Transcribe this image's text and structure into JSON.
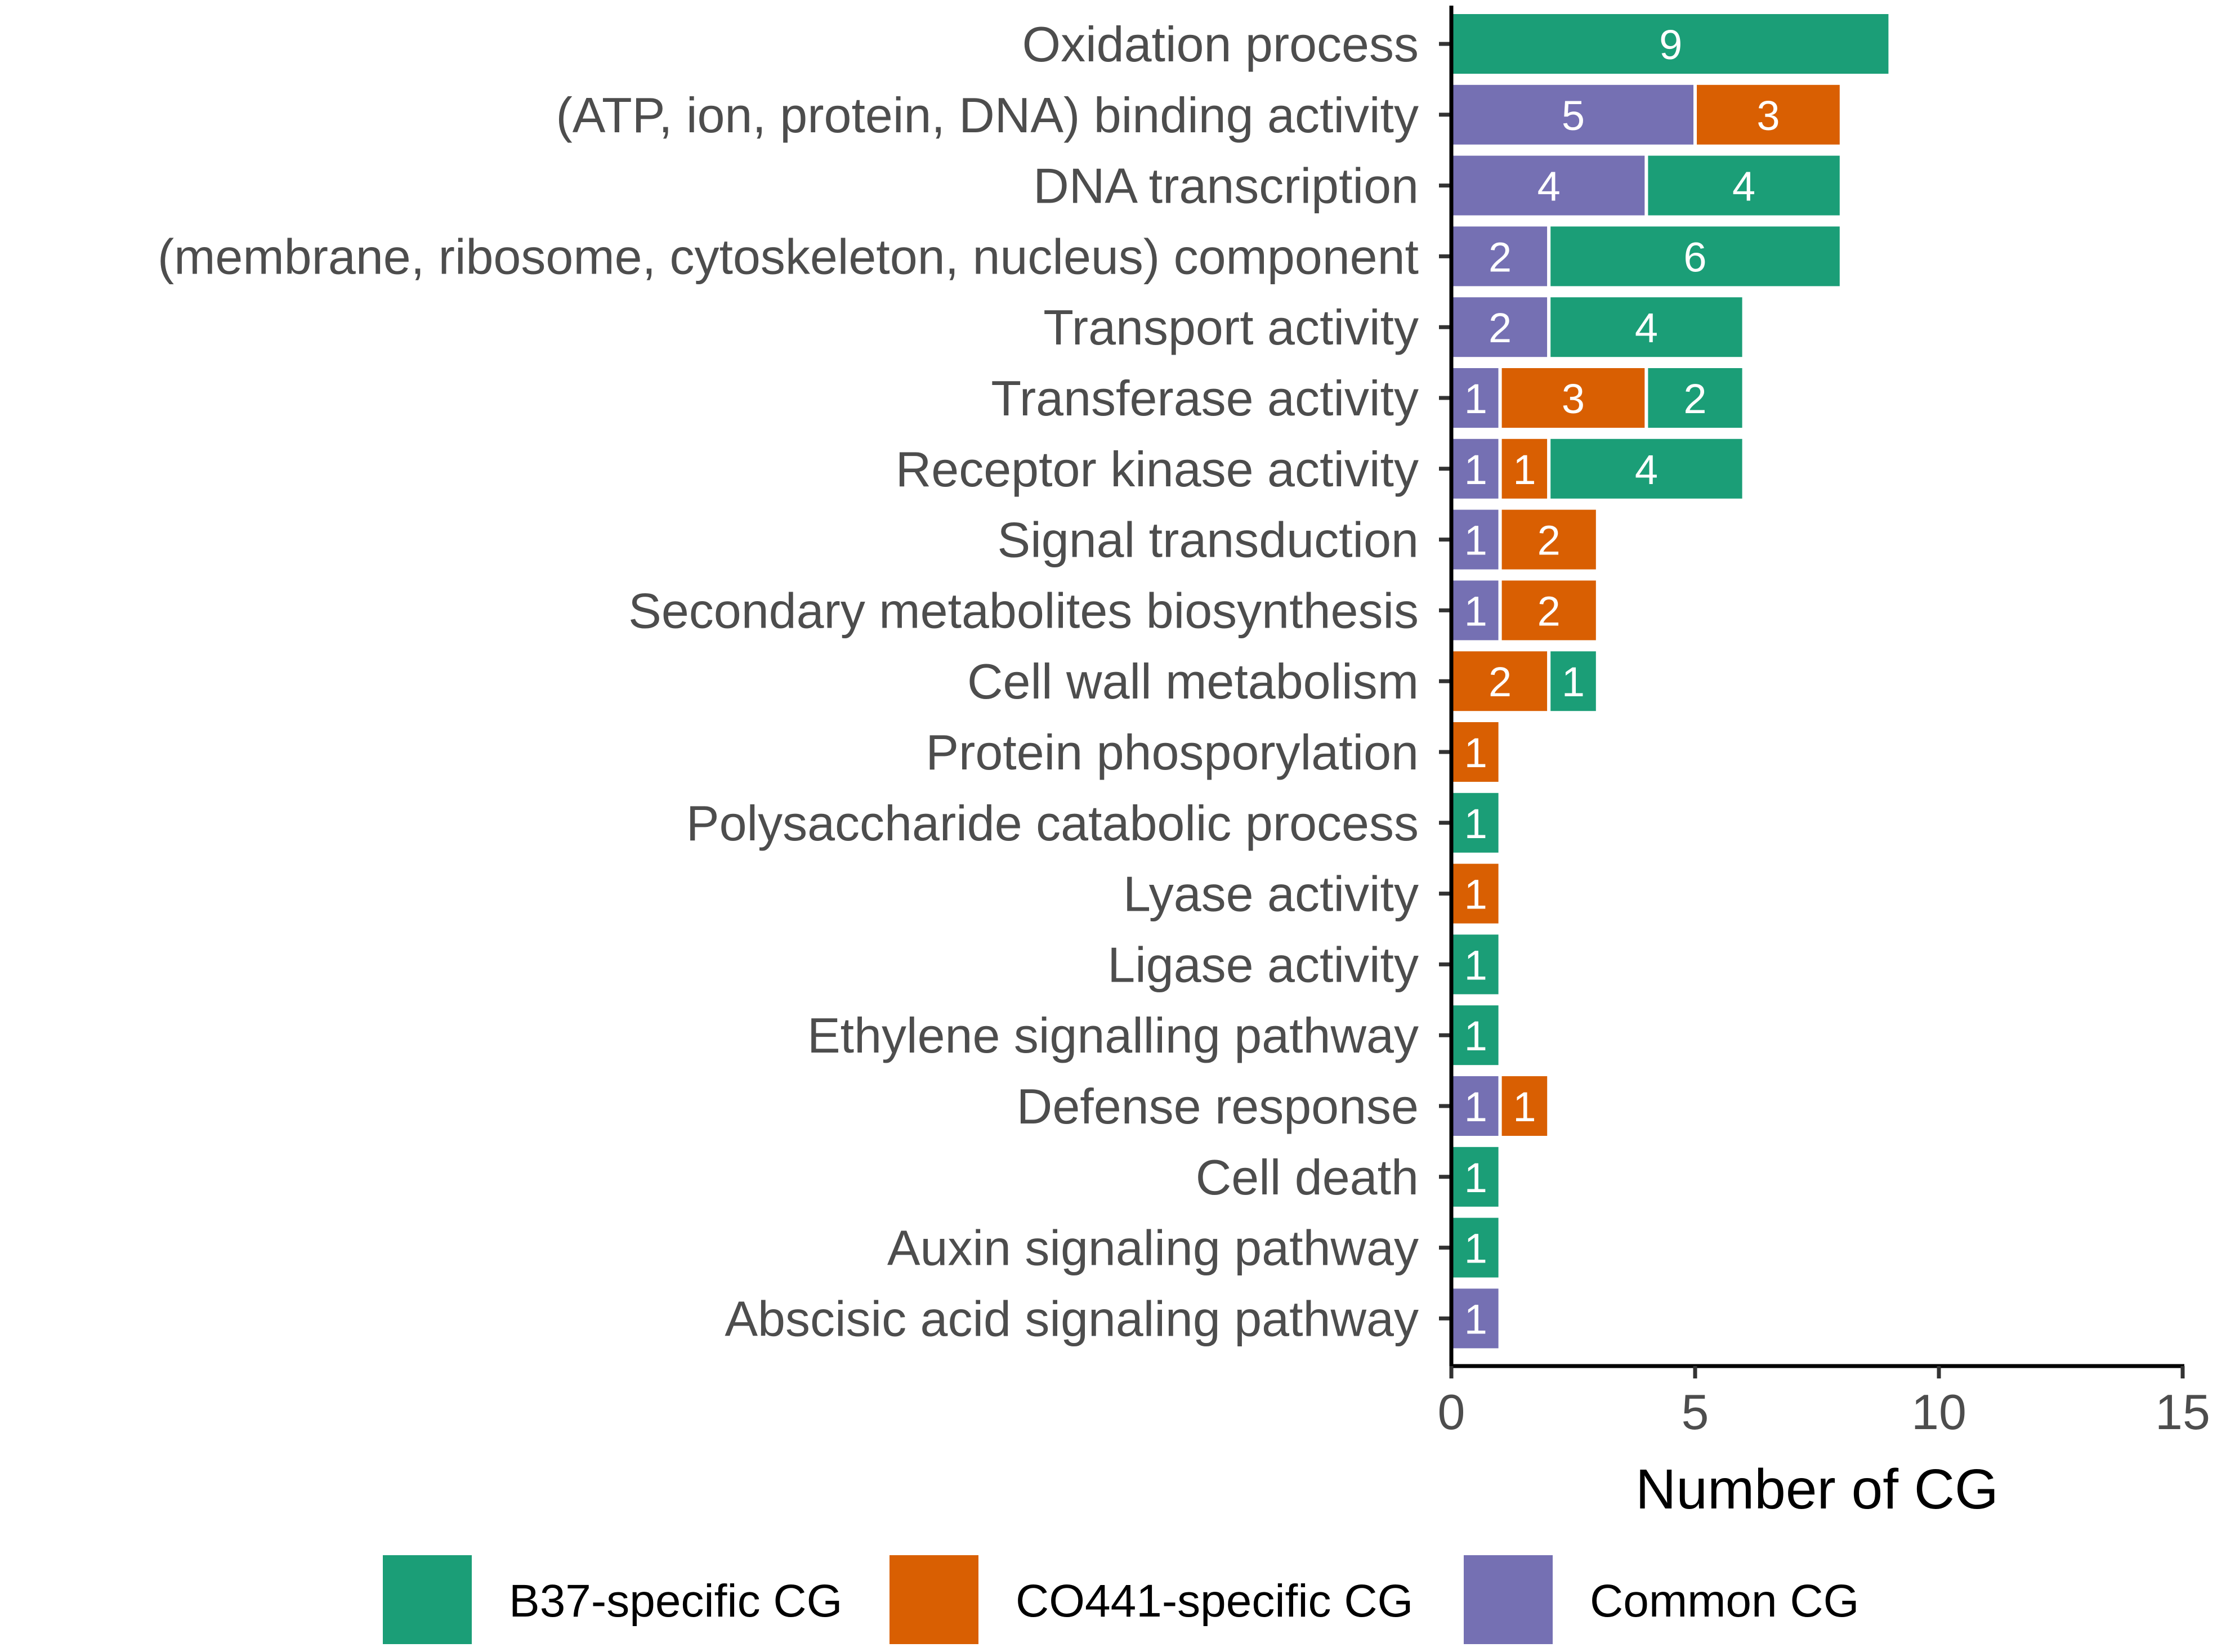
{
  "chart_data": {
    "type": "bar",
    "orientation": "horizontal",
    "stacked": true,
    "categories": [
      "Oxidation process",
      "(ATP, ion, protein, DNA) binding activity",
      "DNA transcription",
      "(membrane, ribosome, cytoskeleton, nucleus) component",
      "Transport activity",
      "Transferase activity",
      "Receptor kinase activity",
      "Signal transduction",
      "Secondary metabolites biosynthesis",
      "Cell wall metabolism",
      "Protein phosporylation",
      "Polysaccharide catabolic process",
      "Lyase activity",
      "Ligase activity",
      "Ethylene signalling pathway",
      "Defense response",
      "Cell death",
      "Auxin signaling pathway",
      "Abscisic acid signaling pathway"
    ],
    "series": [
      {
        "name": "Common CG",
        "key": "common",
        "color": "#7570b3",
        "values": [
          0,
          5,
          4,
          2,
          2,
          1,
          1,
          1,
          1,
          0,
          0,
          0,
          0,
          0,
          0,
          1,
          0,
          0,
          1
        ]
      },
      {
        "name": "CO441-specific CG",
        "key": "co441",
        "color": "#d95f02",
        "values": [
          0,
          3,
          0,
          0,
          0,
          3,
          1,
          2,
          2,
          2,
          1,
          0,
          1,
          0,
          0,
          1,
          0,
          0,
          0
        ]
      },
      {
        "name": "B37-specific CG",
        "key": "b37",
        "color": "#1b9e77",
        "values": [
          9,
          0,
          4,
          6,
          4,
          2,
          4,
          0,
          0,
          1,
          0,
          1,
          0,
          1,
          1,
          0,
          1,
          1,
          0
        ]
      }
    ],
    "legend_order": [
      "B37-specific CG",
      "CO441-specific CG",
      "Common CG"
    ],
    "xlabel": "Number of CG",
    "ylabel": "",
    "xlim": [
      0,
      15
    ],
    "xticks": [
      0,
      5,
      10,
      15
    ],
    "xtick_labels": [
      "0",
      "5",
      "10",
      "15"
    ],
    "grid": false,
    "legend_position": "bottom"
  }
}
